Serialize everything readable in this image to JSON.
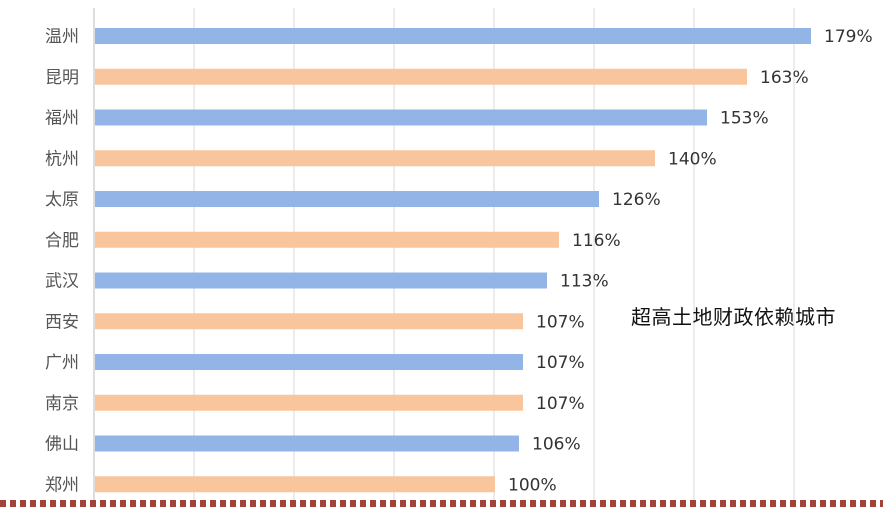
{
  "chart_data": {
    "type": "bar",
    "orientation": "horizontal",
    "categories": [
      "温州",
      "昆明",
      "福州",
      "杭州",
      "太原",
      "合肥",
      "武汉",
      "西安",
      "广州",
      "南京",
      "佛山",
      "郑州"
    ],
    "values": [
      179,
      163,
      153,
      140,
      126,
      116,
      113,
      107,
      107,
      107,
      106,
      100
    ],
    "value_labels": [
      "179%",
      "163%",
      "153%",
      "140%",
      "126%",
      "116%",
      "113%",
      "107%",
      "107%",
      "107%",
      "106%",
      "100%"
    ],
    "unit": "%",
    "xlim": [
      0,
      180
    ],
    "grid": true,
    "bar_colors": [
      "#93b4e6",
      "#f8c59c"
    ],
    "annotation": "超高土地财政依赖城市"
  },
  "colors": {
    "grid": "#d9d9d9",
    "axis": "#bbbbbb",
    "border": "#a0443a"
  }
}
